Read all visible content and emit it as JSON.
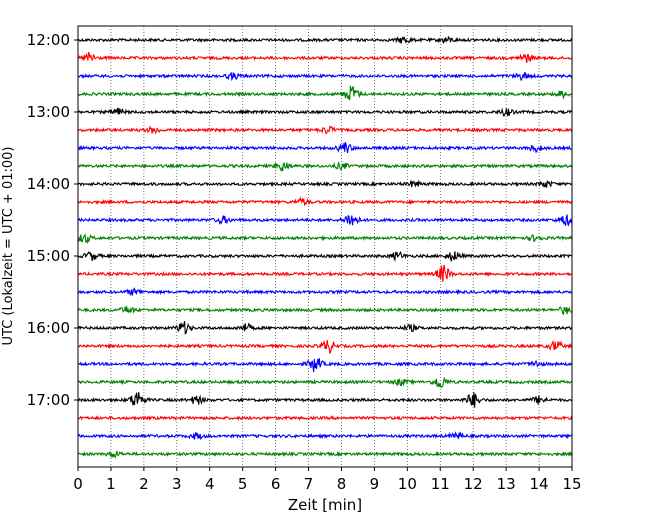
{
  "chart_data": {
    "type": "line",
    "xlabel": "Zeit  [min]",
    "ylabel": "UTC (Lokalzeit = UTC + 01:00)",
    "xlim": [
      0,
      15
    ],
    "x_ticks": [
      0,
      1,
      2,
      3,
      4,
      5,
      6,
      7,
      8,
      9,
      10,
      11,
      12,
      13,
      14,
      15
    ],
    "grid": "vertical dotted",
    "y_ticks": [
      "12:00",
      "13:00",
      "14:00",
      "15:00",
      "16:00",
      "17:00"
    ],
    "trace_interval_minutes": 15,
    "color_cycle": [
      "#000000",
      "#ff0000",
      "#0000ff",
      "#008000"
    ],
    "traces": [
      {
        "start": "12:00",
        "color": "#000000",
        "events": [
          [
            9.9,
            0.35
          ],
          [
            11.2,
            0.3
          ]
        ]
      },
      {
        "start": "12:15",
        "color": "#ff0000",
        "events": [
          [
            0.35,
            0.55
          ],
          [
            13.6,
            0.45
          ]
        ]
      },
      {
        "start": "12:30",
        "color": "#0000ff",
        "events": [
          [
            4.7,
            0.3
          ],
          [
            13.5,
            0.35
          ]
        ]
      },
      {
        "start": "12:45",
        "color": "#008000",
        "events": [
          [
            8.3,
            0.9
          ],
          [
            14.7,
            0.3
          ]
        ]
      },
      {
        "start": "13:00",
        "color": "#000000",
        "events": [
          [
            1.2,
            0.4
          ],
          [
            13.0,
            0.35
          ]
        ]
      },
      {
        "start": "13:15",
        "color": "#ff0000",
        "events": [
          [
            2.3,
            0.3
          ],
          [
            7.6,
            0.35
          ]
        ]
      },
      {
        "start": "13:30",
        "color": "#0000ff",
        "events": [
          [
            8.1,
            0.6
          ],
          [
            13.9,
            0.35
          ]
        ]
      },
      {
        "start": "13:45",
        "color": "#008000",
        "events": [
          [
            6.2,
            0.55
          ],
          [
            8.0,
            0.3
          ]
        ]
      },
      {
        "start": "14:00",
        "color": "#000000",
        "events": [
          [
            10.2,
            0.3
          ],
          [
            14.2,
            0.3
          ]
        ]
      },
      {
        "start": "14:15",
        "color": "#ff0000",
        "events": [
          [
            6.8,
            0.3
          ]
        ]
      },
      {
        "start": "14:30",
        "color": "#0000ff",
        "events": [
          [
            4.4,
            0.35
          ],
          [
            8.3,
            0.8
          ],
          [
            14.8,
            0.55
          ]
        ]
      },
      {
        "start": "14:45",
        "color": "#008000",
        "events": [
          [
            0.2,
            0.45
          ],
          [
            13.9,
            0.3
          ]
        ]
      },
      {
        "start": "15:00",
        "color": "#000000",
        "events": [
          [
            0.4,
            0.45
          ],
          [
            9.7,
            0.4
          ],
          [
            11.4,
            0.5
          ]
        ]
      },
      {
        "start": "15:15",
        "color": "#ff0000",
        "events": [
          [
            11.1,
            0.9
          ]
        ]
      },
      {
        "start": "15:30",
        "color": "#0000ff",
        "events": [
          [
            1.7,
            0.3
          ]
        ]
      },
      {
        "start": "15:45",
        "color": "#008000",
        "events": [
          [
            1.5,
            0.35
          ],
          [
            14.8,
            0.4
          ]
        ]
      },
      {
        "start": "16:00",
        "color": "#000000",
        "events": [
          [
            3.2,
            0.65
          ],
          [
            5.1,
            0.4
          ],
          [
            10.1,
            0.3
          ]
        ]
      },
      {
        "start": "16:15",
        "color": "#ff0000",
        "events": [
          [
            7.6,
            0.7
          ],
          [
            14.5,
            0.5
          ]
        ]
      },
      {
        "start": "16:30",
        "color": "#0000ff",
        "events": [
          [
            7.2,
            0.8
          ],
          [
            13.9,
            0.3
          ]
        ]
      },
      {
        "start": "16:45",
        "color": "#008000",
        "events": [
          [
            11.0,
            0.7
          ],
          [
            9.8,
            0.3
          ]
        ]
      },
      {
        "start": "17:00",
        "color": "#000000",
        "events": [
          [
            1.8,
            1.0
          ],
          [
            3.6,
            0.45
          ],
          [
            12.0,
            0.8
          ],
          [
            14.0,
            0.4
          ]
        ]
      },
      {
        "start": "17:15",
        "color": "#ff0000",
        "events": []
      },
      {
        "start": "17:30",
        "color": "#0000ff",
        "events": [
          [
            3.6,
            0.3
          ],
          [
            11.5,
            0.3
          ]
        ]
      },
      {
        "start": "17:45",
        "color": "#008000",
        "events": [
          [
            1.1,
            0.3
          ]
        ]
      }
    ]
  }
}
